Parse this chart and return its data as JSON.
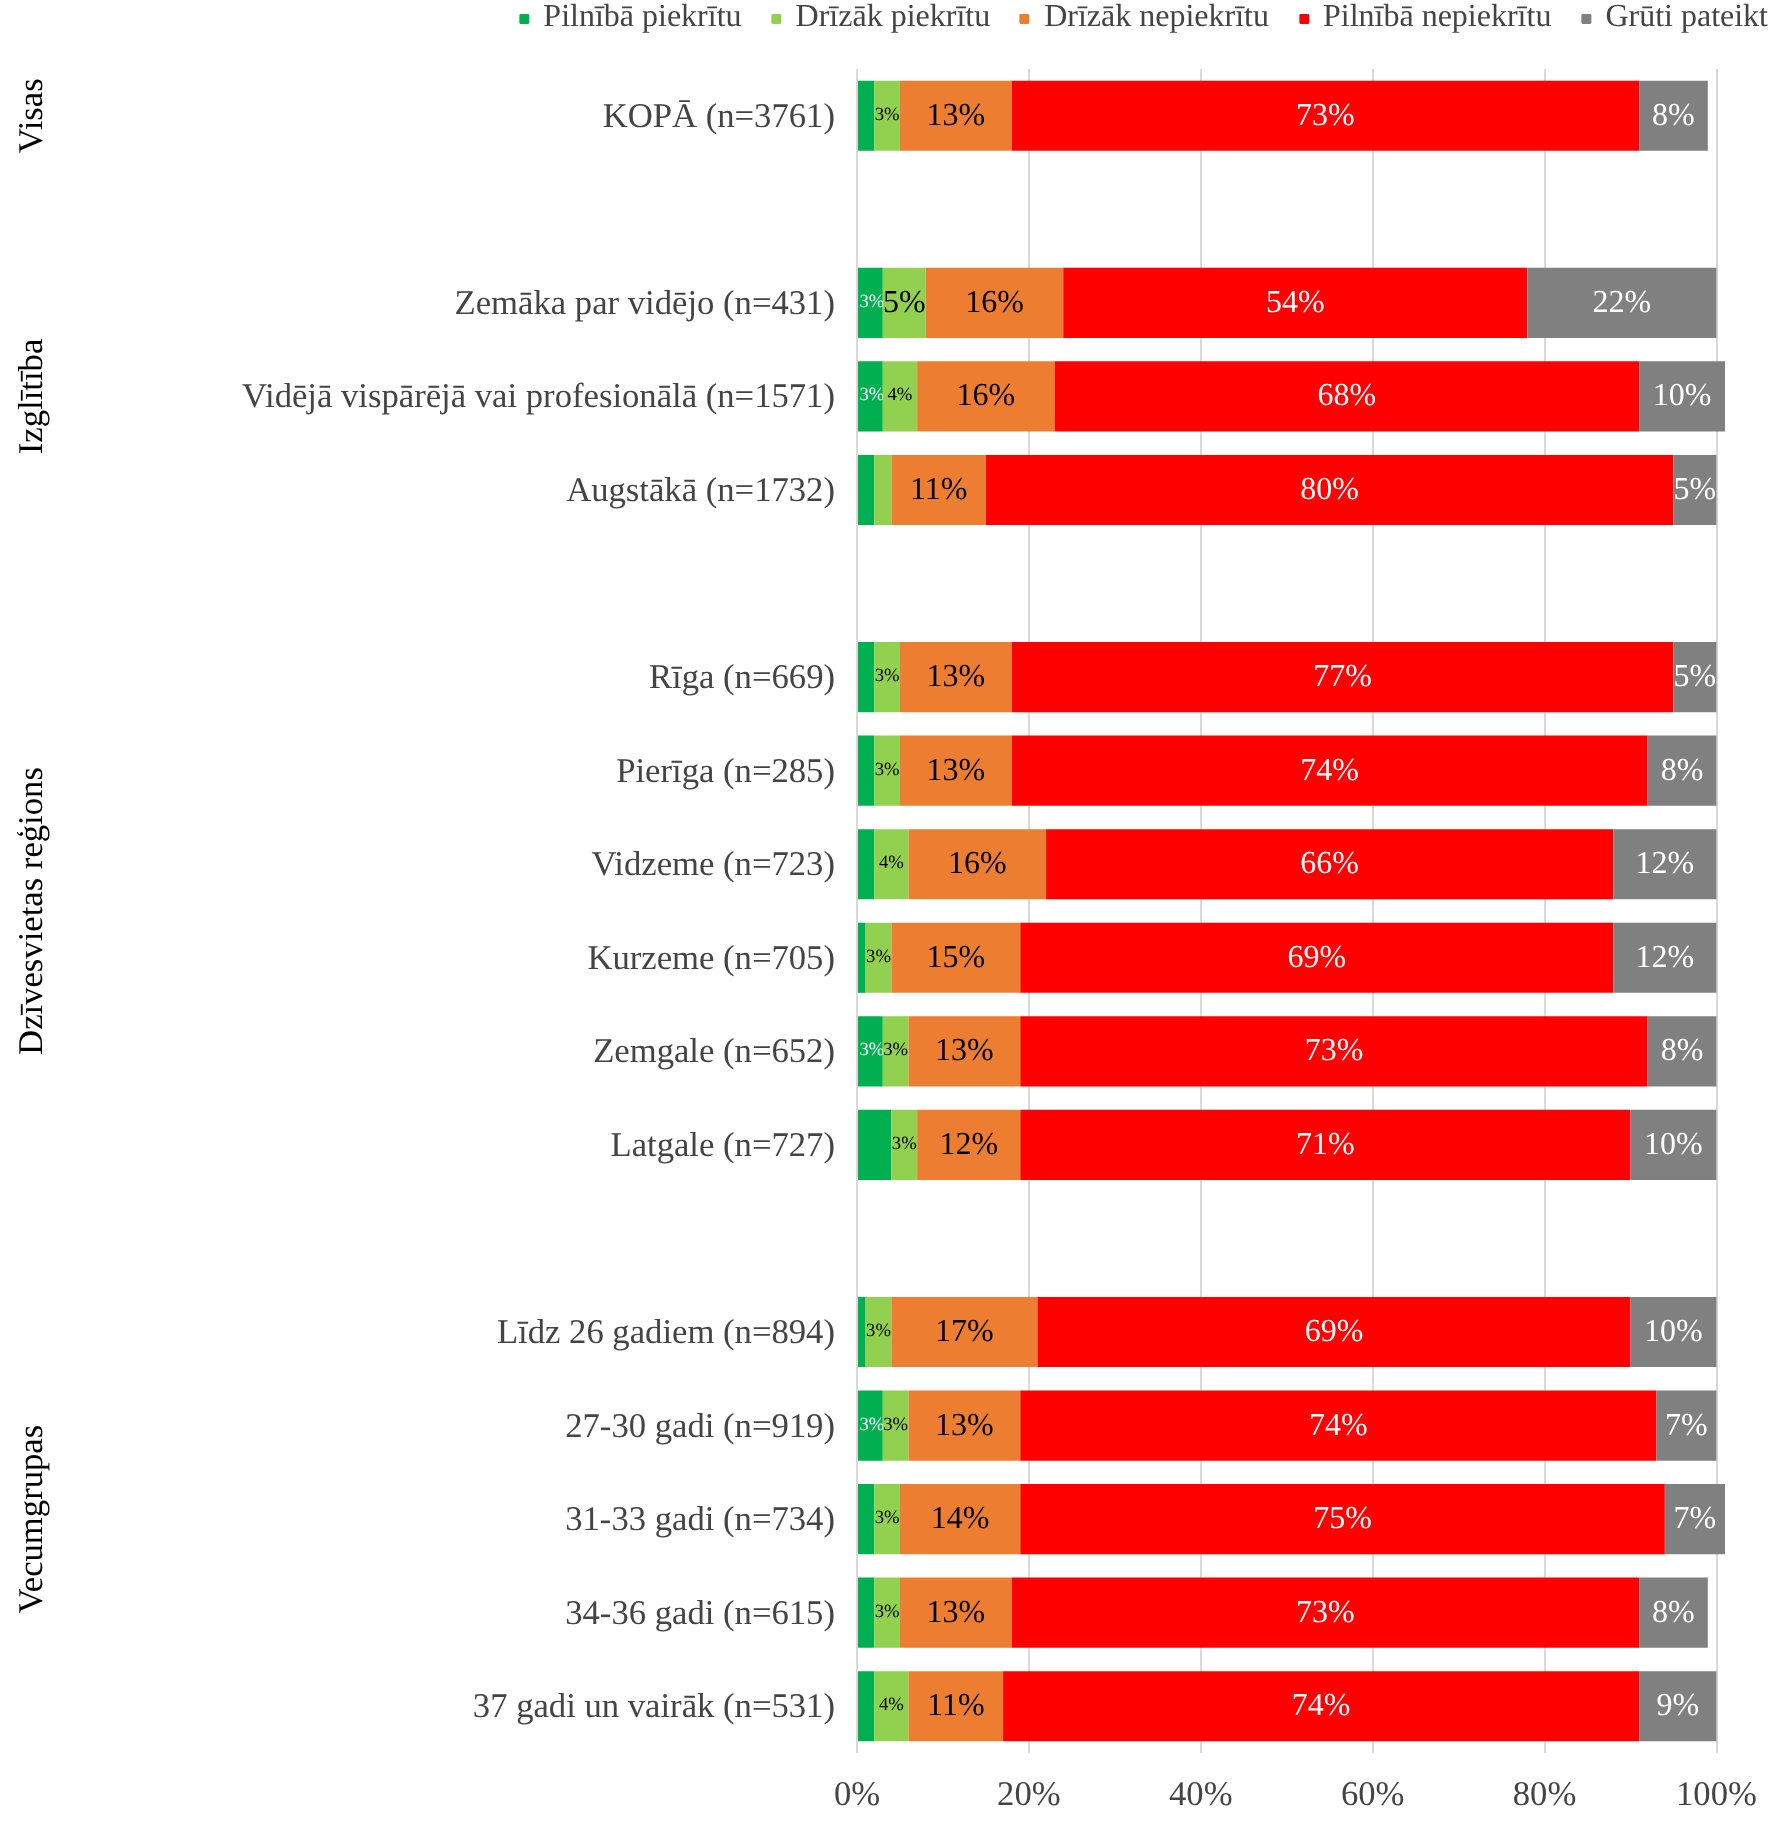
{
  "chart_data": {
    "type": "bar",
    "orientation": "horizontal",
    "stacked": true,
    "categories": [
      "KOPĀ (n=3761)",
      null,
      "Zemāka par vidējo (n=431)",
      "Vidējā vispārējā vai profesionālā (n=1571)",
      "Augstākā (n=1732)",
      null,
      "Rīga (n=669)",
      "Pierīga (n=285)",
      "Vidzeme (n=723)",
      "Kurzeme (n=705)",
      "Zemgale (n=652)",
      "Latgale (n=727)",
      null,
      "Līdz 26 gadiem (n=894)",
      "27-30 gadi (n=919)",
      "31-33 gadi (n=734)",
      "34-36 gadi (n=615)",
      "37 gadi un vairāk (n=531)"
    ],
    "series": [
      {
        "name": "Pilnībā piekrītu",
        "color": "#00b050",
        "values": [
          2,
          null,
          3,
          3,
          2,
          null,
          2,
          2,
          2,
          1,
          3,
          4,
          null,
          1,
          3,
          2,
          2,
          2
        ],
        "value_labels": [
          null,
          null,
          "3%",
          "3%",
          null,
          null,
          null,
          null,
          null,
          null,
          "3%",
          null,
          null,
          null,
          "3%",
          null,
          null,
          null
        ]
      },
      {
        "name": "Drīzāk piekrītu",
        "color": "#92d050",
        "values": [
          3,
          null,
          5,
          4,
          2,
          null,
          3,
          3,
          4,
          3,
          3,
          3,
          null,
          3,
          3,
          3,
          3,
          4
        ],
        "value_labels": [
          "3%",
          null,
          "5%",
          "4%",
          null,
          null,
          "3%",
          "3%",
          "4%",
          "3%",
          "3%",
          "3%",
          null,
          "3%",
          "3%",
          "3%",
          "3%",
          "4%"
        ]
      },
      {
        "name": "Drīzāk nepiekrītu",
        "color": "#ed7d31",
        "values": [
          13,
          null,
          16,
          16,
          11,
          null,
          13,
          13,
          16,
          15,
          13,
          12,
          null,
          17,
          13,
          14,
          13,
          11
        ],
        "value_labels": [
          "13%",
          null,
          "16%",
          "16%",
          "11%",
          null,
          "13%",
          "13%",
          "16%",
          "15%",
          "13%",
          "12%",
          null,
          "17%",
          "13%",
          "14%",
          "13%",
          "11%"
        ]
      },
      {
        "name": "Pilnībā nepiekrītu",
        "color": "#ff0000",
        "values": [
          73,
          null,
          54,
          68,
          80,
          null,
          77,
          74,
          66,
          69,
          73,
          71,
          null,
          69,
          74,
          75,
          73,
          74
        ],
        "value_labels": [
          "73%",
          null,
          "54%",
          "68%",
          "80%",
          null,
          "77%",
          "74%",
          "66%",
          "69%",
          "73%",
          "71%",
          null,
          "69%",
          "74%",
          "75%",
          "73%",
          "74%"
        ]
      },
      {
        "name": "Grūti pateikt",
        "color": "#808080",
        "values": [
          8,
          null,
          22,
          10,
          5,
          null,
          5,
          8,
          12,
          12,
          8,
          10,
          null,
          10,
          7,
          7,
          8,
          9
        ],
        "value_labels": [
          "8%",
          null,
          "22%",
          "10%",
          "5%",
          null,
          "5%",
          "8%",
          "12%",
          "12%",
          "8%",
          "10%",
          null,
          "10%",
          "7%",
          "7%",
          "8%",
          "9%"
        ]
      }
    ],
    "xlim": [
      0,
      101
    ],
    "xticks": [
      {
        "value": 0,
        "label": "0%"
      },
      {
        "value": 20,
        "label": "20%"
      },
      {
        "value": 40,
        "label": "40%"
      },
      {
        "value": 60,
        "label": "60%"
      },
      {
        "value": 80,
        "label": "80%"
      },
      {
        "value": 100,
        "label": "100%"
      }
    ],
    "grid": "x",
    "legend": "top",
    "annotations": [
      "Visas",
      "Izglītība",
      "Dzīvesvietas reģions",
      "Vecumgrupas"
    ]
  }
}
